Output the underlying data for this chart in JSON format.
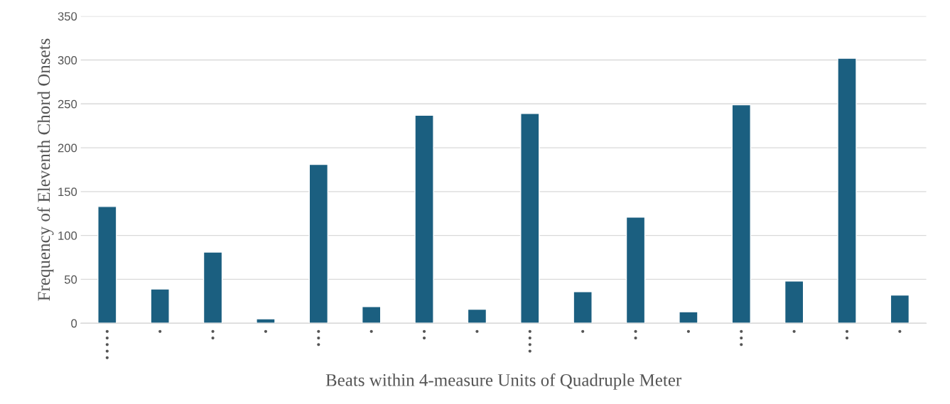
{
  "chart_data": {
    "type": "bar",
    "xlabel": "Beats within 4-measure Units of Quadruple Meter",
    "ylabel": "Frequency of Eleventh Chord Onsets",
    "categories": [
      "•\n•\n•\n•\n•",
      "•",
      "•\n•",
      "•",
      "•\n•\n•",
      "•",
      "•\n•",
      "•",
      "•\n•\n•\n•",
      "•",
      "•\n•",
      "•",
      "•\n•\n•",
      "•",
      "•\n•",
      "•"
    ],
    "values": [
      133,
      39,
      81,
      5,
      181,
      19,
      237,
      16,
      239,
      36,
      121,
      13,
      249,
      48,
      302,
      32
    ],
    "color": "#1b5f80",
    "ylim": [
      0,
      350
    ],
    "yticks": [
      0,
      50,
      100,
      150,
      200,
      250,
      300,
      350
    ],
    "grid": "y"
  }
}
